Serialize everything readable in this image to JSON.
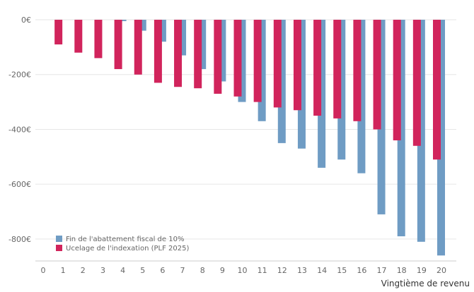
{
  "chart_data": {
    "type": "bar",
    "x_label": "Vingtième de revenu",
    "categories": [
      "1",
      "2",
      "3",
      "4",
      "5",
      "6",
      "7",
      "8",
      "9",
      "10",
      "11",
      "12",
      "13",
      "14",
      "15",
      "16",
      "17",
      "18",
      "19",
      "20"
    ],
    "x_ticks": [
      "0",
      "1",
      "2",
      "3",
      "4",
      "5",
      "6",
      "7",
      "8",
      "9",
      "10",
      "11",
      "12",
      "13",
      "14",
      "15",
      "16",
      "17",
      "18",
      "19",
      "20"
    ],
    "y_ticks": [
      0,
      -200,
      -400,
      -600,
      -800
    ],
    "y_tick_labels": [
      "0€",
      "-200€",
      "-400€",
      "-600€",
      "-800€"
    ],
    "ylim": [
      -880,
      0
    ],
    "grid": "horizontal",
    "legend_position": "bottom-left",
    "series": [
      {
        "name": "Fin de l'abattement fiscal de 10%",
        "color": "#6f9cc4",
        "values": [
          0,
          0,
          0,
          -5,
          -40,
          -80,
          -130,
          -180,
          -225,
          -300,
          -370,
          -450,
          -470,
          -540,
          -510,
          -560,
          -710,
          -790,
          -810,
          -860
        ]
      },
      {
        "name": "Ucelage de l'indexation (PLF 2025)",
        "color": "#d1245c",
        "values": [
          -90,
          -120,
          -140,
          -180,
          -200,
          -230,
          -245,
          -250,
          -270,
          -280,
          -300,
          -320,
          -330,
          -350,
          -360,
          -370,
          -400,
          -440,
          -460,
          -510
        ]
      }
    ]
  }
}
